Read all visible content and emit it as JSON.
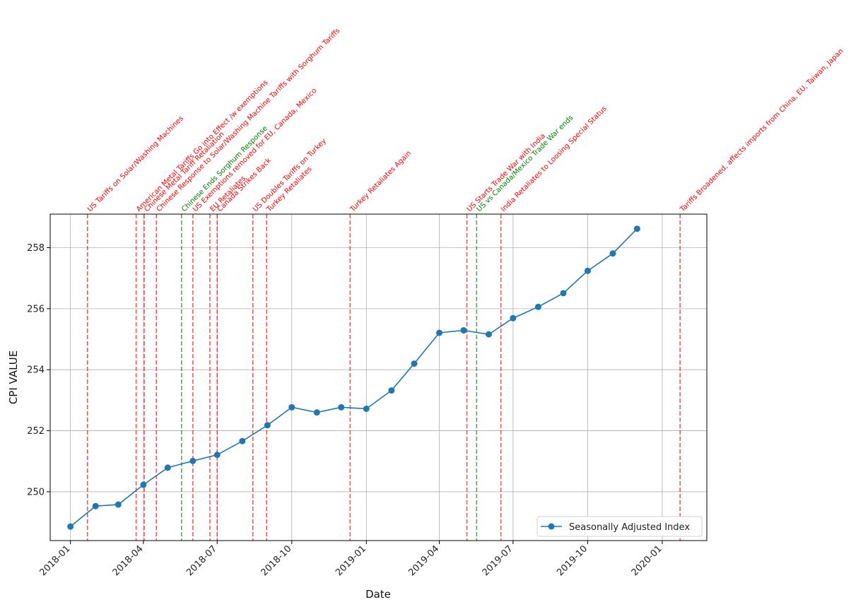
{
  "chart_data": {
    "type": "line",
    "xlabel": "Date",
    "ylabel": "CPI VALUE",
    "xlim": [
      "2017-12-07",
      "2020-02-25"
    ],
    "ylim": [
      248.4,
      259.1
    ],
    "grid": true,
    "legend_position": "bottom-right",
    "x_ticks": [
      {
        "date": "2018-01-01",
        "label": "2018-01"
      },
      {
        "date": "2018-04-01",
        "label": "2018-04"
      },
      {
        "date": "2018-07-01",
        "label": "2018-07"
      },
      {
        "date": "2018-10-01",
        "label": "2018-10"
      },
      {
        "date": "2019-01-01",
        "label": "2019-01"
      },
      {
        "date": "2019-04-01",
        "label": "2019-04"
      },
      {
        "date": "2019-07-01",
        "label": "2019-07"
      },
      {
        "date": "2019-10-01",
        "label": "2019-10"
      },
      {
        "date": "2020-01-01",
        "label": "2020-01"
      }
    ],
    "y_ticks": [
      250,
      252,
      254,
      256,
      258
    ],
    "series": [
      {
        "name": "Seasonally Adjusted Index",
        "color": "#1f77b4",
        "points": [
          {
            "x": "2018-01-01",
            "y": 248.86
          },
          {
            "x": "2018-02-01",
            "y": 249.53
          },
          {
            "x": "2018-03-01",
            "y": 249.58
          },
          {
            "x": "2018-04-01",
            "y": 250.23
          },
          {
            "x": "2018-05-01",
            "y": 250.79
          },
          {
            "x": "2018-06-01",
            "y": 251.01
          },
          {
            "x": "2018-07-01",
            "y": 251.21
          },
          {
            "x": "2018-08-01",
            "y": 251.66
          },
          {
            "x": "2018-09-01",
            "y": 252.18
          },
          {
            "x": "2018-10-01",
            "y": 252.77
          },
          {
            "x": "2018-11-01",
            "y": 252.6
          },
          {
            "x": "2018-12-01",
            "y": 252.77
          },
          {
            "x": "2019-01-01",
            "y": 252.72
          },
          {
            "x": "2019-02-01",
            "y": 253.32
          },
          {
            "x": "2019-03-01",
            "y": 254.2
          },
          {
            "x": "2019-04-01",
            "y": 255.21
          },
          {
            "x": "2019-05-01",
            "y": 255.29
          },
          {
            "x": "2019-06-01",
            "y": 255.16
          },
          {
            "x": "2019-07-01",
            "y": 255.69
          },
          {
            "x": "2019-08-01",
            "y": 256.06
          },
          {
            "x": "2019-09-01",
            "y": 256.51
          },
          {
            "x": "2019-10-01",
            "y": 257.24
          },
          {
            "x": "2019-11-01",
            "y": 257.81
          },
          {
            "x": "2019-12-01",
            "y": 258.62
          }
        ]
      }
    ],
    "events": [
      {
        "date": "2018-01-22",
        "label": "US Tariffs on Solar/Washing Machines",
        "color": "#ff0000"
      },
      {
        "date": "2018-03-23",
        "label": "American Metal Tariffs Go into Effect /w exemptions",
        "color": "#ff0000"
      },
      {
        "date": "2018-04-02",
        "label": "Chinese Metal Tariff Retaliation",
        "color": "#ff0000"
      },
      {
        "date": "2018-04-17",
        "label": "Chinese Response to Solar/Washing Machine Tariffs with Sorghum Tariffs",
        "color": "#ff0000"
      },
      {
        "date": "2018-05-18",
        "label": "Chinese Ends Sorghum Response",
        "color": "#008000"
      },
      {
        "date": "2018-06-01",
        "label": "US Exemptions removed for EU, Canada, Mexico",
        "color": "#ff0000"
      },
      {
        "date": "2018-06-22",
        "label": "EU Retaliates",
        "color": "#ff0000"
      },
      {
        "date": "2018-07-01",
        "label": "Canada Strikes Back",
        "color": "#ff0000"
      },
      {
        "date": "2018-08-14",
        "label": "US Doubles Tariffs on Turkey",
        "color": "#ff0000"
      },
      {
        "date": "2018-08-31",
        "label": "Turkey Retaliates",
        "color": "#ff0000"
      },
      {
        "date": "2018-12-12",
        "label": "Turkey Retaliates Again",
        "color": "#ff0000"
      },
      {
        "date": "2019-05-05",
        "label": "US Starts Trade War with India",
        "color": "#ff0000"
      },
      {
        "date": "2019-05-17",
        "label": "US vs Canada/Mexico Trade War ends",
        "color": "#008000"
      },
      {
        "date": "2019-06-16",
        "label": "India Retaliates to Loosing Special Status",
        "color": "#ff0000"
      },
      {
        "date": "2020-01-23",
        "label": "Tariffs Broadened, affects imports from China, EU, Taiwan, Japan",
        "color": "#ff0000"
      }
    ]
  }
}
